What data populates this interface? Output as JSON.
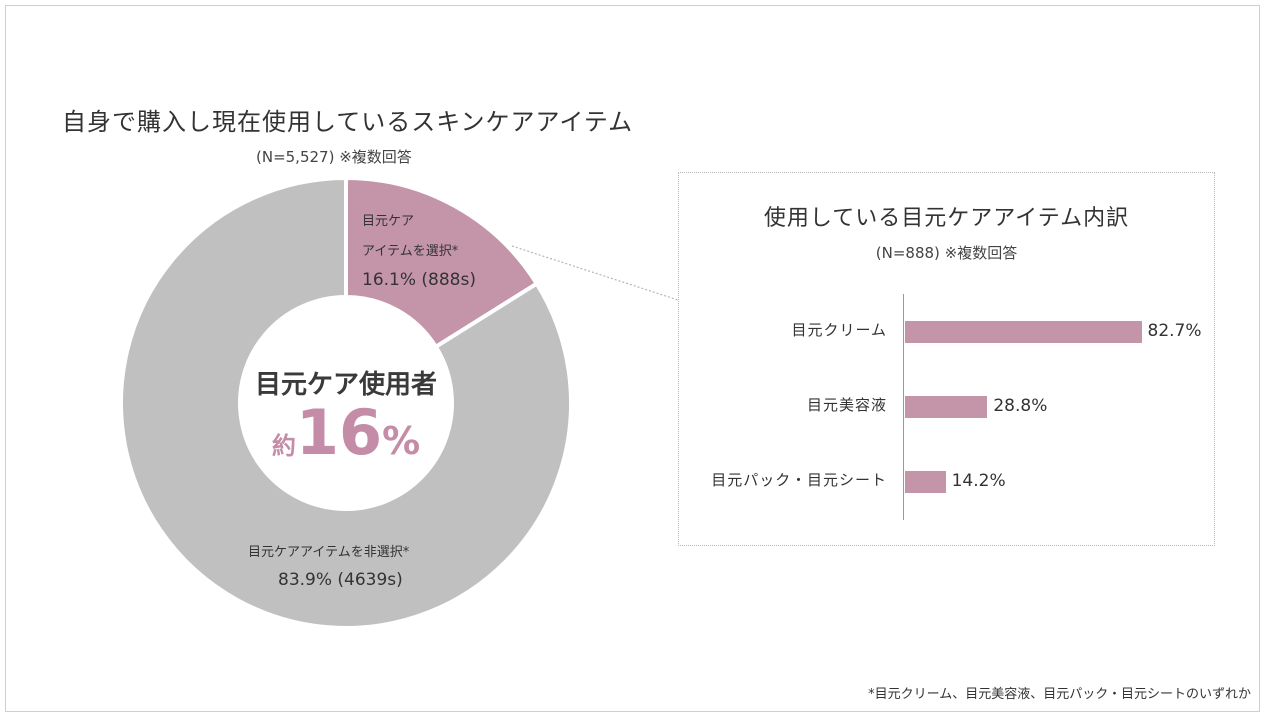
{
  "footnote": "*目元クリーム、目元美容液、目元パック・目元シートのいずれか",
  "chart_data": [
    {
      "type": "pie",
      "variant": "donut",
      "title": "自身で購入し現在使用しているスキンケアアイテム",
      "subtitle": "(N=5,527) ※複数回答",
      "slices": [
        {
          "label_line1": "目元ケア",
          "label_line2": "アイテムを選択*",
          "value": 16.1,
          "value_text": "16.1% (888s)",
          "color": "#c495a8"
        },
        {
          "label_line1": "目元ケアアイテムを非選択*",
          "value": 83.9,
          "value_text": "83.9% (4639s)",
          "color": "#c0c0c0"
        }
      ],
      "center": {
        "heading": "目元ケア使用者",
        "prefix": "約",
        "number": "16",
        "unit": "%"
      }
    },
    {
      "type": "bar",
      "orientation": "horizontal",
      "title": "使用している目元ケアアイテム内訳",
      "subtitle": "(N=888) ※複数回答",
      "categories": [
        "目元クリーム",
        "目元美容液",
        "目元パック・目元シート"
      ],
      "values": [
        82.7,
        28.8,
        14.2
      ],
      "value_labels": [
        "82.7%",
        "28.8%",
        "14.2%"
      ],
      "xlim": [
        0,
        100
      ],
      "color": "#c495a8"
    }
  ]
}
